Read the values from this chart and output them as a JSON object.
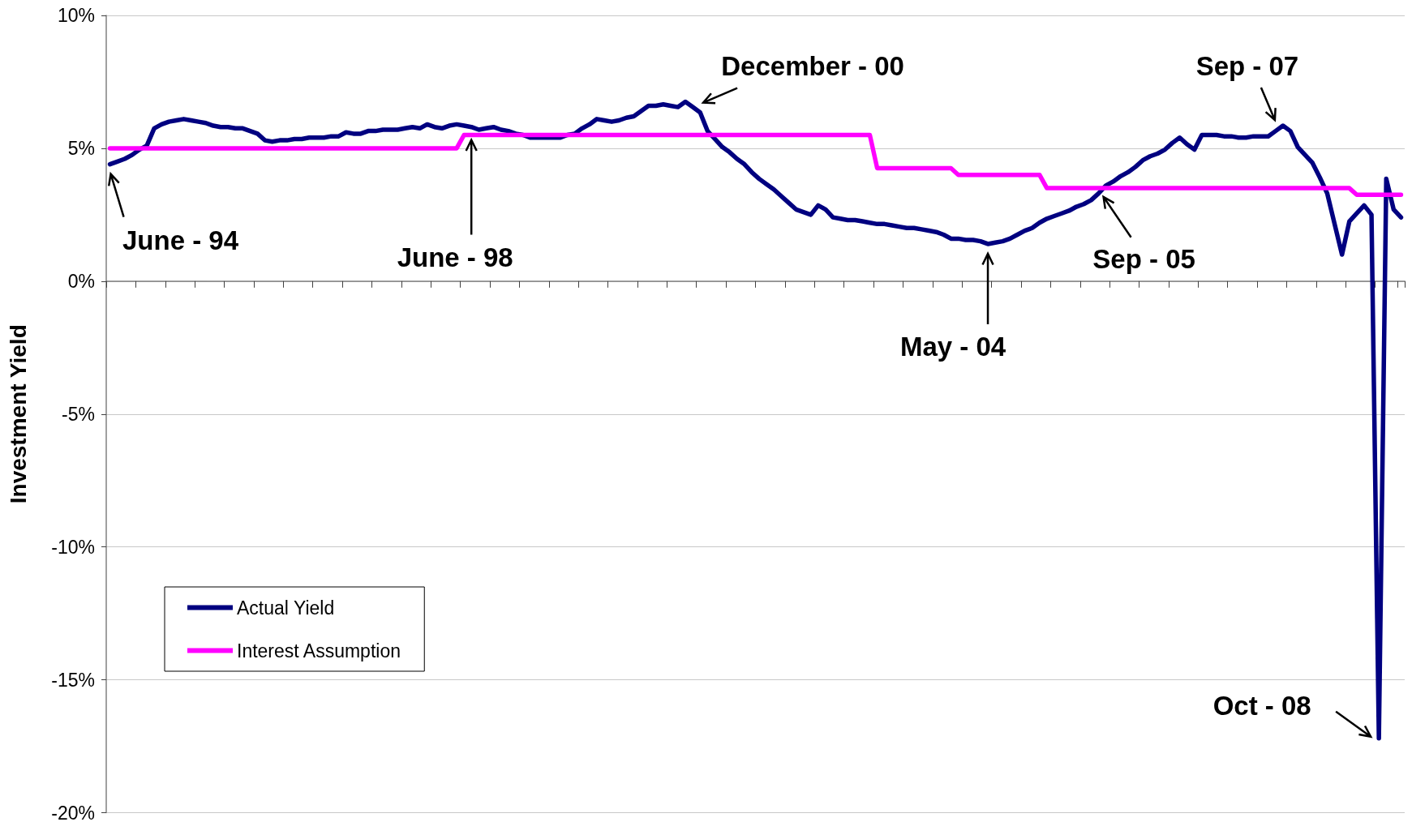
{
  "chart_data": {
    "type": "line",
    "ylabel": "Investment Yield",
    "categories": [
      null,
      null,
      null,
      null,
      null,
      null,
      null,
      null,
      null,
      null,
      null,
      null,
      null,
      null,
      null,
      null,
      null,
      null,
      null,
      null,
      null,
      null,
      null,
      null,
      null,
      null,
      null,
      null,
      null,
      null,
      null,
      null,
      null,
      null,
      null,
      null,
      null,
      null,
      null,
      null,
      null,
      null,
      null,
      null,
      null,
      null,
      null,
      null,
      null,
      null,
      null,
      null,
      null,
      null,
      null,
      null,
      null,
      null,
      null,
      null,
      null,
      null,
      null,
      null,
      null,
      null,
      null,
      null,
      null,
      null,
      null,
      null,
      null,
      null,
      null,
      null,
      null,
      null,
      null,
      null,
      null,
      null,
      null,
      null,
      null,
      null,
      null,
      null,
      null,
      null,
      null,
      null,
      null,
      null,
      null,
      null,
      null,
      null,
      null,
      null,
      null,
      null,
      null,
      null,
      null,
      null,
      null,
      null,
      null,
      null,
      null,
      null,
      null,
      null,
      null,
      null,
      null,
      null,
      null,
      null,
      null,
      null,
      null,
      null,
      null,
      null,
      null,
      null,
      null,
      null,
      null,
      null,
      null,
      null,
      null,
      null,
      null,
      null,
      null,
      null,
      null,
      null,
      null,
      null,
      null,
      null,
      null,
      null,
      null,
      null,
      null,
      null,
      null,
      null,
      null,
      null,
      null,
      null,
      null,
      null,
      null,
      null,
      null,
      null,
      null,
      null,
      null,
      null,
      null,
      null,
      null,
      null,
      null,
      null,
      null,
      null
    ],
    "ylim": [
      -20,
      10
    ],
    "yticks": [
      {
        "value": -20,
        "label": "-20%"
      },
      {
        "value": -15,
        "label": "-15%"
      },
      {
        "value": -10,
        "label": "-10%"
      },
      {
        "value": -5,
        "label": "-5%"
      },
      {
        "value": 0,
        "label": "0%"
      },
      {
        "value": 5,
        "label": "5%"
      },
      {
        "value": 10,
        "label": "10%"
      }
    ],
    "tick_labels": "y",
    "grid": "y",
    "legend": "bottom left",
    "marker": "none",
    "line_style": "solid",
    "series": [
      {
        "name": "Actual Yield",
        "color": "#000080",
        "values": [
          4.4,
          4.5,
          4.6,
          4.75,
          4.95,
          5.1,
          5.75,
          5.9,
          6.0,
          6.05,
          6.1,
          6.05,
          6.0,
          5.95,
          5.85,
          5.8,
          5.8,
          5.75,
          5.75,
          5.65,
          5.55,
          5.3,
          5.25,
          5.3,
          5.3,
          5.35,
          5.35,
          5.4,
          5.4,
          5.4,
          5.45,
          5.45,
          5.6,
          5.55,
          5.55,
          5.65,
          5.65,
          5.7,
          5.7,
          5.7,
          5.75,
          5.8,
          5.75,
          5.9,
          5.8,
          5.75,
          5.85,
          5.9,
          5.85,
          5.8,
          5.7,
          5.75,
          5.8,
          5.7,
          5.65,
          5.55,
          5.5,
          5.4,
          5.4,
          5.4,
          5.4,
          5.4,
          5.5,
          5.55,
          5.75,
          5.9,
          6.1,
          6.05,
          6.0,
          6.05,
          6.15,
          6.2,
          6.4,
          6.6,
          6.6,
          6.65,
          6.6,
          6.55,
          6.75,
          6.55,
          6.35,
          5.65,
          5.35,
          5.05,
          4.85,
          4.6,
          4.4,
          4.1,
          3.85,
          3.65,
          3.45,
          3.2,
          2.95,
          2.7,
          2.6,
          2.5,
          2.85,
          2.7,
          2.4,
          2.35,
          2.3,
          2.3,
          2.25,
          2.2,
          2.15,
          2.15,
          2.1,
          2.05,
          2.0,
          2.0,
          1.95,
          1.9,
          1.85,
          1.75,
          1.6,
          1.6,
          1.55,
          1.55,
          1.5,
          1.4,
          1.45,
          1.5,
          1.6,
          1.75,
          1.9,
          2.0,
          2.2,
          2.35,
          2.45,
          2.55,
          2.65,
          2.8,
          2.9,
          3.05,
          3.3,
          3.6,
          3.75,
          3.95,
          4.1,
          4.3,
          4.55,
          4.7,
          4.8,
          4.95,
          5.2,
          5.4,
          5.15,
          4.95,
          5.5,
          5.5,
          5.5,
          5.45,
          5.45,
          5.4,
          5.4,
          5.45,
          5.45,
          5.45,
          5.65,
          5.85,
          5.65,
          5.05,
          4.75,
          4.45,
          3.9,
          3.3,
          2.15,
          1.0,
          2.25,
          2.55,
          2.85,
          2.5,
          -17.2,
          3.85,
          2.7,
          2.4
        ]
      },
      {
        "name": "Interest Assumption",
        "color": "#ff00ff",
        "values": [
          5,
          5,
          5,
          5,
          5,
          5,
          5,
          5,
          5,
          5,
          5,
          5,
          5,
          5,
          5,
          5,
          5,
          5,
          5,
          5,
          5,
          5,
          5,
          5,
          5,
          5,
          5,
          5,
          5,
          5,
          5,
          5,
          5,
          5,
          5,
          5,
          5,
          5,
          5,
          5,
          5,
          5,
          5,
          5,
          5,
          5,
          5,
          5,
          5.5,
          5.5,
          5.5,
          5.5,
          5.5,
          5.5,
          5.5,
          5.5,
          5.5,
          5.5,
          5.5,
          5.5,
          5.5,
          5.5,
          5.5,
          5.5,
          5.5,
          5.5,
          5.5,
          5.5,
          5.5,
          5.5,
          5.5,
          5.5,
          5.5,
          5.5,
          5.5,
          5.5,
          5.5,
          5.5,
          5.5,
          5.5,
          5.5,
          5.5,
          5.5,
          5.5,
          5.5,
          5.5,
          5.5,
          5.5,
          5.5,
          5.5,
          5.5,
          5.5,
          5.5,
          5.5,
          5.5,
          5.5,
          5.5,
          5.5,
          5.5,
          5.5,
          5.5,
          5.5,
          5.5,
          5.5,
          4.25,
          4.25,
          4.25,
          4.25,
          4.25,
          4.25,
          4.25,
          4.25,
          4.25,
          4.25,
          4.25,
          4,
          4,
          4,
          4,
          4,
          4,
          4,
          4,
          4,
          4,
          4,
          4,
          3.5,
          3.5,
          3.5,
          3.5,
          3.5,
          3.5,
          3.5,
          3.5,
          3.5,
          3.5,
          3.5,
          3.5,
          3.5,
          3.5,
          3.5,
          3.5,
          3.5,
          3.5,
          3.5,
          3.5,
          3.5,
          3.5,
          3.5,
          3.5,
          3.5,
          3.5,
          3.5,
          3.5,
          3.5,
          3.5,
          3.5,
          3.5,
          3.5,
          3.5,
          3.5,
          3.5,
          3.5,
          3.5,
          3.5,
          3.5,
          3.5,
          3.5,
          3.25,
          3.25,
          3.25,
          3.25,
          3.25,
          3.25,
          3.25
        ]
      }
    ],
    "annotations": [
      "June - 94",
      "June - 98",
      "December - 00",
      "May - 04",
      "Sep - 05",
      "Sep - 07",
      "Oct - 08"
    ]
  }
}
